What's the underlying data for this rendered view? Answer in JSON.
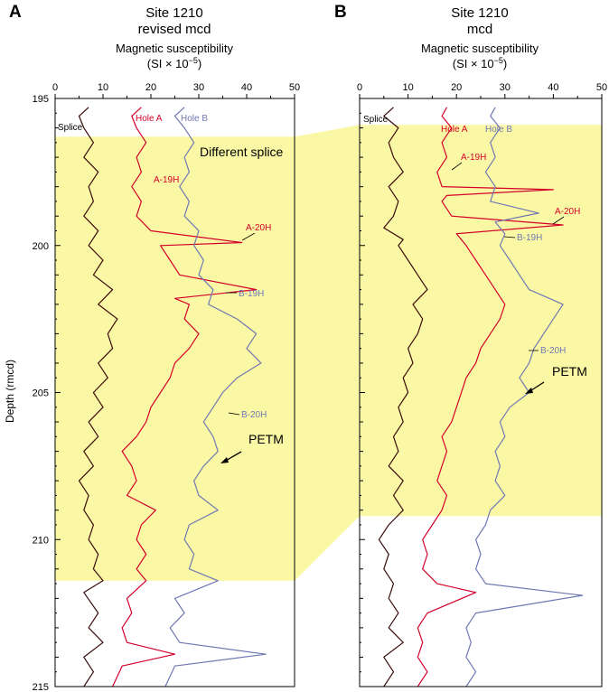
{
  "colors": {
    "splice": "#3a0b0b",
    "hole_a": "#d4002a",
    "hole_b": "#6f78b3",
    "highlight": "#fbf8a5",
    "axis": "#000000"
  },
  "y_axis": {
    "label": "Depth (rmcd)",
    "ticks": [
      "195",
      "200",
      "205",
      "210",
      "215"
    ],
    "range": [
      195,
      215
    ]
  },
  "x_axis": {
    "ticks": [
      "0",
      "10",
      "20",
      "30",
      "40",
      "50"
    ],
    "range": [
      0,
      50
    ]
  },
  "panels": [
    {
      "letter": "A",
      "title_line1": "Site 1210",
      "title_line2": "revised mcd",
      "axis_title_line1": "Magnetic susceptibility",
      "axis_title_line2": "(SI × 10",
      "axis_title_exp": "−5",
      "axis_title_close": ")",
      "highlight_range": [
        196.3,
        211.4
      ],
      "labels": {
        "splice": "Splice",
        "hole_a": "Hole A",
        "hole_b": "Hole B",
        "core_a1": "A-19H",
        "core_a2": "A-20H",
        "core_b1": "B-19H",
        "core_b2": "B-20H",
        "petm": "PETM",
        "different_splice": "Different splice"
      }
    },
    {
      "letter": "B",
      "title_line1": "Site 1210",
      "title_line2": "mcd",
      "axis_title_line1": "Magnetic susceptibility",
      "axis_title_line2": "(SI × 10",
      "axis_title_exp": "−5",
      "axis_title_close": ")",
      "highlight_range": [
        195.9,
        209.2
      ],
      "labels": {
        "splice": "Splice",
        "hole_a": "Hole A",
        "hole_b": "Hole B",
        "core_a1": "A-19H",
        "core_a2": "A-20H",
        "core_b1": "B-19H",
        "core_b2": "B-20H",
        "petm": "PETM"
      }
    }
  ],
  "chart_data": [
    {
      "type": "line",
      "panel": "A",
      "title": "Site 1210 revised mcd",
      "xlabel": "Magnetic susceptibility (SI × 10⁻⁵)",
      "ylabel": "Depth (rmcd)",
      "xlim": [
        0,
        50
      ],
      "ylim": [
        215,
        195
      ],
      "series": [
        {
          "name": "Splice",
          "points": [
            [
              7,
              195.3
            ],
            [
              5,
              195.6
            ],
            [
              6,
              196
            ],
            [
              8,
              196.5
            ],
            [
              6,
              197
            ],
            [
              9,
              197.5
            ],
            [
              7,
              198
            ],
            [
              8,
              198.5
            ],
            [
              6,
              199
            ],
            [
              9,
              199.5
            ],
            [
              7,
              200
            ],
            [
              10,
              200.5
            ],
            [
              8,
              201
            ],
            [
              12,
              201.5
            ],
            [
              9,
              202
            ],
            [
              13,
              202.5
            ],
            [
              11,
              203
            ],
            [
              12,
              203.5
            ],
            [
              9,
              204
            ],
            [
              11,
              204.5
            ],
            [
              8,
              205
            ],
            [
              10,
              205.5
            ],
            [
              7,
              206
            ],
            [
              9,
              206.5
            ],
            [
              6,
              207
            ],
            [
              8,
              207.5
            ],
            [
              5,
              208
            ],
            [
              7,
              208.5
            ],
            [
              6,
              209
            ],
            [
              8,
              209.5
            ],
            [
              7,
              210
            ],
            [
              9,
              210.5
            ],
            [
              8,
              211
            ],
            [
              10,
              211.4
            ],
            [
              6,
              211.8
            ],
            [
              9,
              212.5
            ],
            [
              7,
              213
            ],
            [
              10,
              213.5
            ],
            [
              6,
              214
            ],
            [
              8,
              214.5
            ],
            [
              6,
              215
            ]
          ]
        },
        {
          "name": "Hole A",
          "points": [
            [
              18,
              195.3
            ],
            [
              16,
              195.6
            ],
            [
              17,
              196
            ],
            [
              19,
              196.5
            ],
            [
              17,
              197
            ],
            [
              18,
              197.5
            ],
            [
              16,
              198
            ],
            [
              18,
              198.5
            ],
            [
              17,
              199
            ],
            [
              20,
              199.5
            ],
            [
              39,
              199.9
            ],
            [
              22,
              200
            ],
            [
              24,
              200.5
            ],
            [
              26,
              201
            ],
            [
              42,
              201.5
            ],
            [
              25,
              201.8
            ],
            [
              28,
              202
            ],
            [
              27,
              202.5
            ],
            [
              30,
              203
            ],
            [
              28,
              203.5
            ],
            [
              25,
              204
            ],
            [
              24,
              204.5
            ],
            [
              22,
              205
            ],
            [
              20,
              205.5
            ],
            [
              19,
              206
            ],
            [
              17,
              206.5
            ],
            [
              14,
              207
            ],
            [
              16,
              207.5
            ],
            [
              17,
              208
            ],
            [
              15,
              208.5
            ],
            [
              21,
              209
            ],
            [
              18,
              209.5
            ],
            [
              17,
              210
            ],
            [
              19,
              210.5
            ],
            [
              17,
              211
            ],
            [
              19,
              211.4
            ],
            [
              15,
              212
            ],
            [
              16,
              212.5
            ],
            [
              14,
              213
            ],
            [
              15,
              213.5
            ],
            [
              25,
              213.9
            ],
            [
              14,
              214.3
            ],
            [
              12,
              215
            ]
          ]
        },
        {
          "name": "Hole B",
          "points": [
            [
              27,
              195.3
            ],
            [
              25,
              195.6
            ],
            [
              27,
              196
            ],
            [
              29,
              196.5
            ],
            [
              27,
              197
            ],
            [
              28,
              197.5
            ],
            [
              26,
              198
            ],
            [
              28,
              198.5
            ],
            [
              27,
              199
            ],
            [
              30,
              199.5
            ],
            [
              29,
              200
            ],
            [
              31,
              200.5
            ],
            [
              30,
              201
            ],
            [
              33,
              201.5
            ],
            [
              32,
              202
            ],
            [
              38,
              202.5
            ],
            [
              42,
              203
            ],
            [
              40,
              203.5
            ],
            [
              43,
              204
            ],
            [
              38,
              204.5
            ],
            [
              35,
              205
            ],
            [
              33,
              205.5
            ],
            [
              31,
              206
            ],
            [
              33,
              206.5
            ],
            [
              34,
              207
            ],
            [
              31,
              207.5
            ],
            [
              29,
              208
            ],
            [
              30,
              208.5
            ],
            [
              34,
              209
            ],
            [
              28,
              209.5
            ],
            [
              27,
              210
            ],
            [
              29,
              210.5
            ],
            [
              28,
              211
            ],
            [
              34,
              211.4
            ],
            [
              25,
              212
            ],
            [
              27,
              212.5
            ],
            [
              24,
              213
            ],
            [
              26,
              213.5
            ],
            [
              44,
              213.9
            ],
            [
              25,
              214.3
            ],
            [
              23,
              215
            ]
          ]
        }
      ]
    },
    {
      "type": "line",
      "panel": "B",
      "title": "Site 1210 mcd",
      "xlabel": "Magnetic susceptibility (SI × 10⁻⁵)",
      "ylabel": "Depth (rmcd)",
      "xlim": [
        0,
        50
      ],
      "ylim": [
        215,
        195
      ],
      "series": [
        {
          "name": "Splice",
          "points": [
            [
              7,
              195.3
            ],
            [
              5,
              195.6
            ],
            [
              8,
              196
            ],
            [
              6,
              196.5
            ],
            [
              7,
              197
            ],
            [
              9,
              197.5
            ],
            [
              6,
              198
            ],
            [
              8,
              198.5
            ],
            [
              7,
              199
            ],
            [
              5,
              199.4
            ],
            [
              9,
              199.8
            ],
            [
              8,
              200
            ],
            [
              10,
              200.5
            ],
            [
              12,
              201
            ],
            [
              14,
              201.5
            ],
            [
              11,
              202
            ],
            [
              13,
              202.5
            ],
            [
              12,
              203
            ],
            [
              10,
              203.5
            ],
            [
              11,
              204
            ],
            [
              9,
              204.5
            ],
            [
              10,
              205
            ],
            [
              8,
              205.5
            ],
            [
              9,
              206
            ],
            [
              7,
              206.5
            ],
            [
              8,
              207
            ],
            [
              6,
              207.5
            ],
            [
              9,
              208
            ],
            [
              7,
              208.5
            ],
            [
              9,
              209
            ],
            [
              6,
              209.5
            ],
            [
              4,
              210
            ],
            [
              6,
              210.5
            ],
            [
              5,
              211
            ],
            [
              7,
              211.5
            ],
            [
              6,
              212
            ],
            [
              8,
              212.5
            ],
            [
              6,
              213
            ],
            [
              9,
              213.5
            ],
            [
              5,
              214
            ],
            [
              7,
              214.5
            ],
            [
              5,
              215
            ]
          ]
        },
        {
          "name": "Hole A",
          "points": [
            [
              18,
              195.3
            ],
            [
              17,
              195.6
            ],
            [
              19,
              196
            ],
            [
              17,
              196.5
            ],
            [
              18,
              197
            ],
            [
              16,
              197.5
            ],
            [
              17,
              198
            ],
            [
              40,
              198.1
            ],
            [
              18,
              198.3
            ],
            [
              17,
              198.5
            ],
            [
              19,
              199
            ],
            [
              42,
              199.3
            ],
            [
              20,
              199.6
            ],
            [
              22,
              200
            ],
            [
              24,
              200.5
            ],
            [
              26,
              201
            ],
            [
              28,
              201.5
            ],
            [
              30,
              202
            ],
            [
              29,
              202.5
            ],
            [
              27,
              203
            ],
            [
              25,
              203.5
            ],
            [
              24,
              204
            ],
            [
              22,
              204.5
            ],
            [
              21,
              205
            ],
            [
              20,
              205.5
            ],
            [
              19,
              206
            ],
            [
              17,
              206.5
            ],
            [
              18,
              207
            ],
            [
              17,
              207.5
            ],
            [
              16,
              208
            ],
            [
              18,
              208.5
            ],
            [
              17,
              209
            ],
            [
              15,
              209.5
            ],
            [
              13,
              210
            ],
            [
              14,
              210.5
            ],
            [
              13,
              211
            ],
            [
              16,
              211.5
            ],
            [
              24,
              211.8
            ],
            [
              14,
              212.5
            ],
            [
              12,
              213
            ],
            [
              13,
              213.5
            ],
            [
              12,
              214
            ],
            [
              14,
              214.5
            ],
            [
              12,
              215
            ]
          ]
        },
        {
          "name": "Hole B",
          "points": [
            [
              28,
              195.3
            ],
            [
              27,
              195.6
            ],
            [
              29,
              196
            ],
            [
              27,
              196.5
            ],
            [
              28,
              197
            ],
            [
              26,
              197.5
            ],
            [
              28,
              198
            ],
            [
              27,
              198.5
            ],
            [
              37,
              198.9
            ],
            [
              28,
              199.2
            ],
            [
              30,
              199.6
            ],
            [
              29,
              200
            ],
            [
              31,
              200.5
            ],
            [
              33,
              201
            ],
            [
              35,
              201.5
            ],
            [
              42,
              202
            ],
            [
              40,
              202.5
            ],
            [
              38,
              203
            ],
            [
              36,
              203.5
            ],
            [
              35,
              204
            ],
            [
              33,
              204.5
            ],
            [
              35,
              205
            ],
            [
              31,
              205.5
            ],
            [
              29,
              206
            ],
            [
              30,
              206.5
            ],
            [
              28,
              207
            ],
            [
              29,
              207.5
            ],
            [
              28,
              208
            ],
            [
              30,
              208.5
            ],
            [
              27,
              209
            ],
            [
              26,
              209.5
            ],
            [
              24,
              210
            ],
            [
              25,
              210.5
            ],
            [
              24,
              211
            ],
            [
              26,
              211.5
            ],
            [
              46,
              211.9
            ],
            [
              24,
              212.5
            ],
            [
              22,
              213
            ],
            [
              23,
              213.5
            ],
            [
              22,
              214
            ],
            [
              24,
              214.5
            ],
            [
              22,
              215
            ]
          ]
        }
      ]
    }
  ]
}
